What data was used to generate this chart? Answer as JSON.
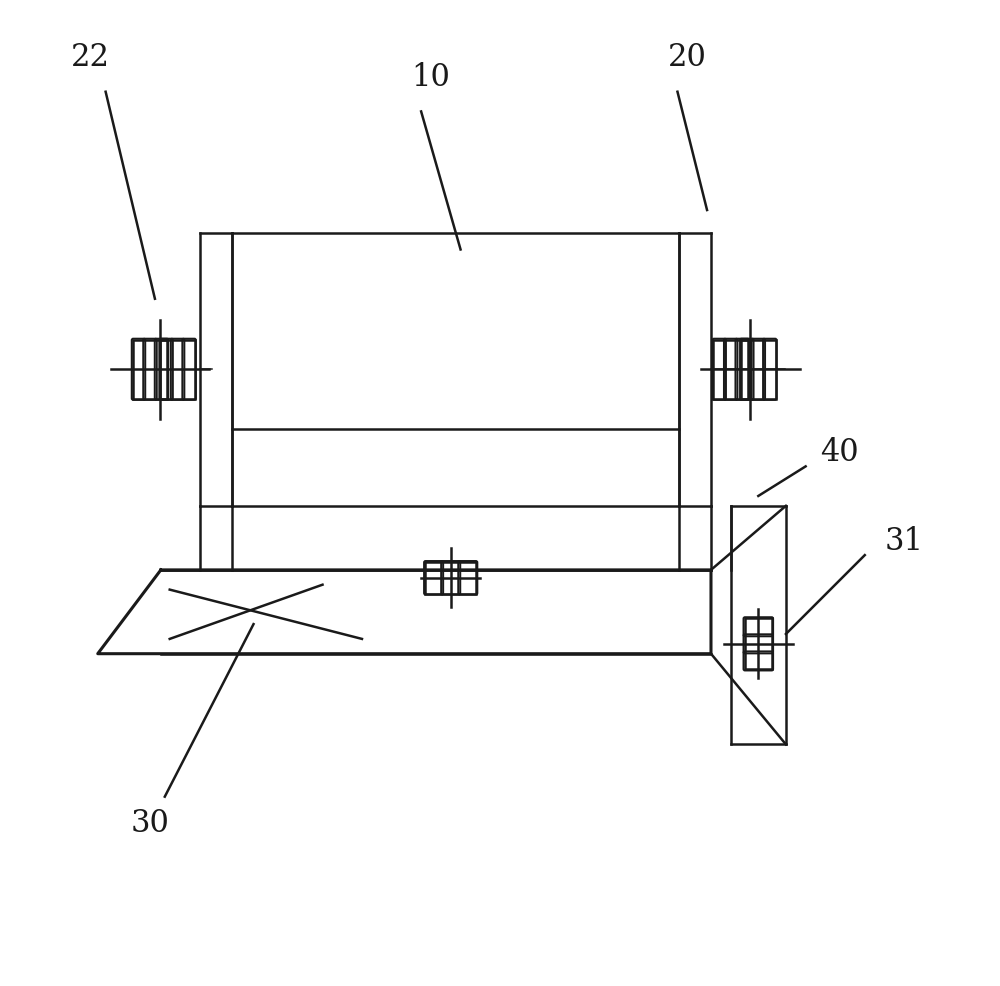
{
  "bg_color": "#ffffff",
  "line_color": "#1a1a1a",
  "lw": 1.8,
  "lw_thick": 2.2,
  "label_fontsize": 22
}
